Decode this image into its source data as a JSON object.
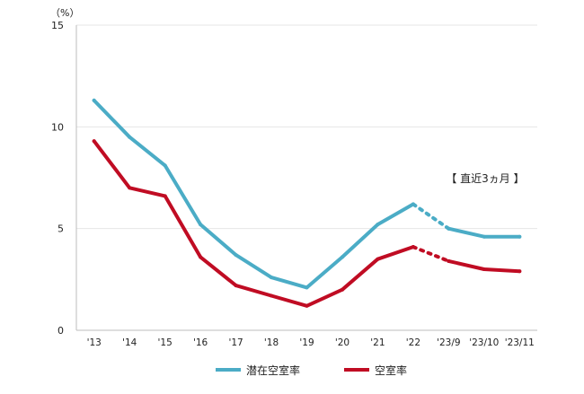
{
  "chart_data": {
    "type": "line",
    "y_unit_label": "（%）",
    "categories": [
      "'13",
      "'14",
      "'15",
      "'16",
      "'17",
      "'18",
      "'19",
      "'20",
      "'21",
      "'22",
      "'23/9",
      "'23/10",
      "'23/11"
    ],
    "ylim": [
      0,
      15
    ],
    "yticks": [
      0,
      5,
      10,
      15
    ],
    "grid": "horizontal",
    "legend_position": "bottom",
    "annotation": "【 直近3ヵ月 】",
    "series": [
      {
        "name": "潜在空室率",
        "color": "#4bacc6",
        "values": [
          11.3,
          9.5,
          8.1,
          5.2,
          3.7,
          2.6,
          2.1,
          3.6,
          5.2,
          6.2,
          5.0,
          4.6,
          4.6
        ]
      },
      {
        "name": "空室率",
        "color": "#c00c23",
        "values": [
          9.3,
          7.0,
          6.6,
          3.6,
          2.2,
          1.7,
          1.2,
          2.0,
          3.5,
          4.1,
          3.4,
          3.0,
          2.9
        ]
      }
    ]
  }
}
